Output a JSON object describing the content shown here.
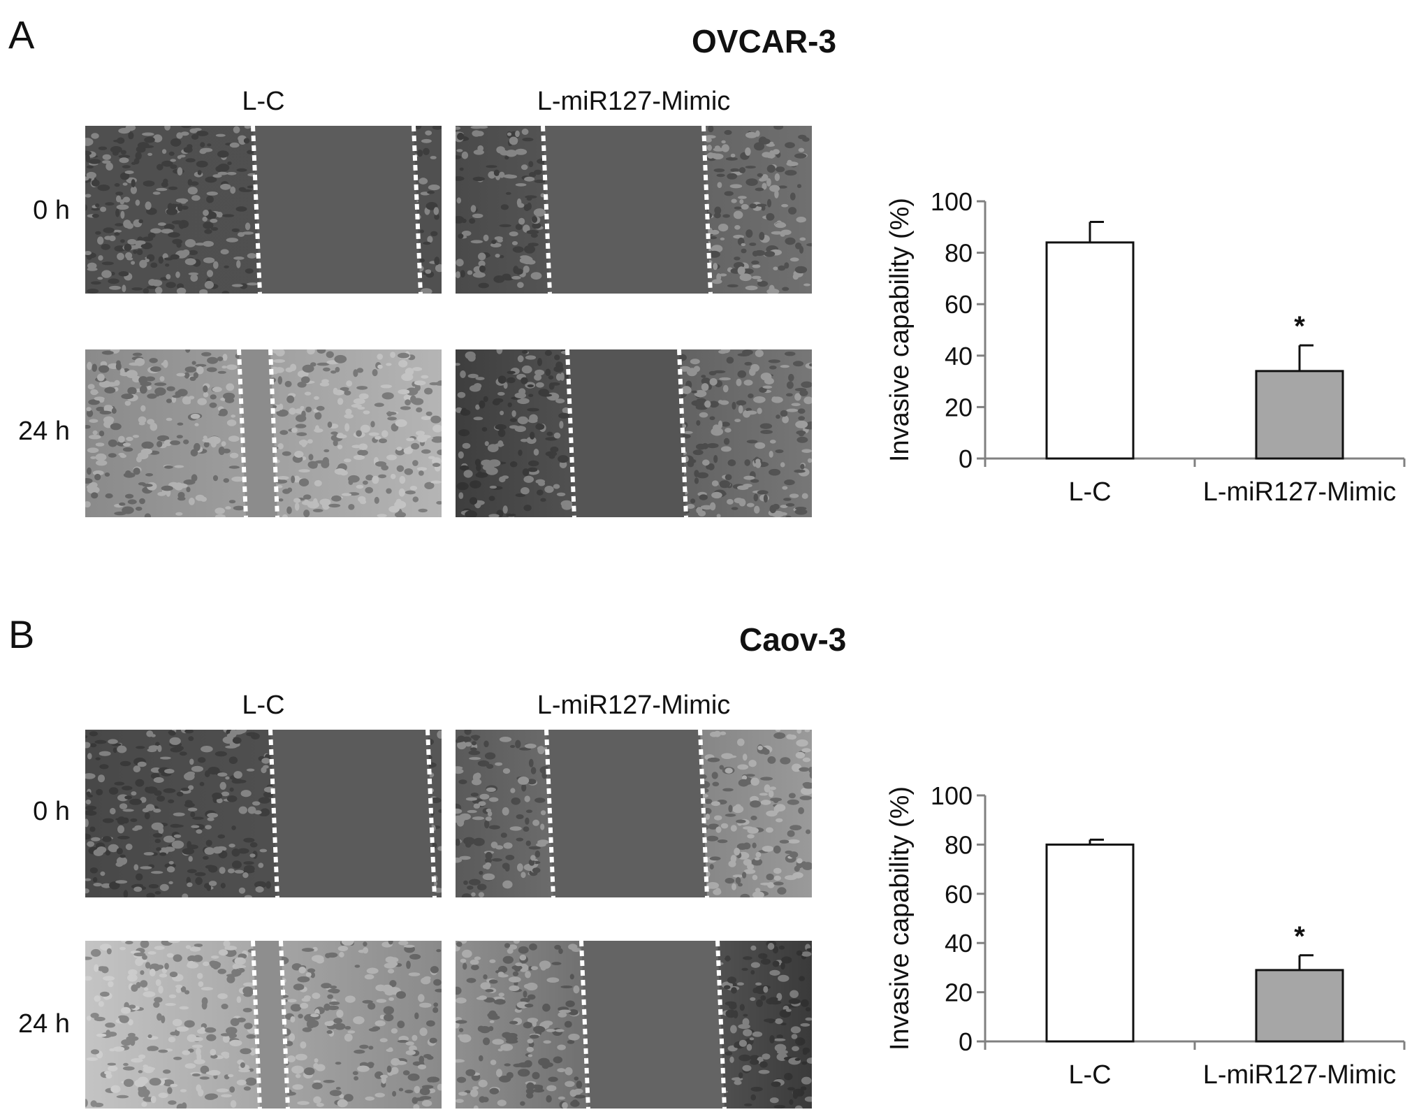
{
  "panels": [
    {
      "letter": "A",
      "cell_line": "OVCAR-3",
      "columns": [
        "L-C",
        "L-miR127-Mimic"
      ],
      "rows": [
        "0 h",
        "24 h"
      ],
      "chart_data": {
        "type": "bar",
        "categories": [
          "L-C",
          "L-miR127-Mimic"
        ],
        "values": [
          84,
          34
        ],
        "errors": [
          8,
          10
        ],
        "annotations": [
          "",
          "*"
        ],
        "ylabel": "Invasive capability (%)",
        "ylim": [
          0,
          100
        ],
        "yticks": [
          0,
          20,
          40,
          60,
          80,
          100
        ],
        "bar_colors": [
          "#ffffff",
          "#a6a6a6"
        ],
        "grid": false
      }
    },
    {
      "letter": "B",
      "cell_line": "Caov-3",
      "columns": [
        "L-C",
        "L-miR127-Mimic"
      ],
      "rows": [
        "0 h",
        "24 h"
      ],
      "chart_data": {
        "type": "bar",
        "categories": [
          "L-C",
          "L-miR127-Mimic"
        ],
        "values": [
          80,
          29
        ],
        "errors": [
          2,
          6
        ],
        "annotations": [
          "",
          "*"
        ],
        "ylabel": "Invasive capability (%)",
        "ylim": [
          0,
          100
        ],
        "yticks": [
          0,
          20,
          40,
          60,
          80,
          100
        ],
        "bar_colors": [
          "#ffffff",
          "#a6a6a6"
        ],
        "grid": false
      }
    }
  ]
}
